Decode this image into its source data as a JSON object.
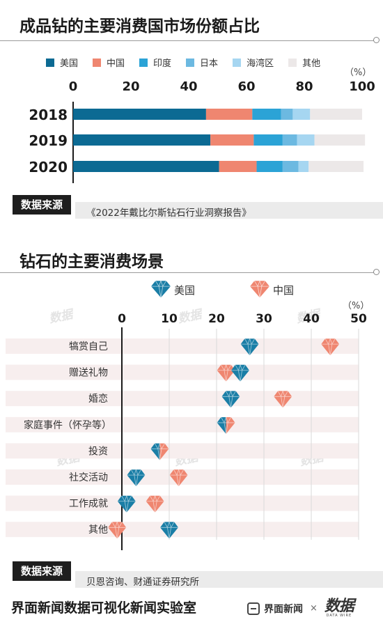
{
  "chart_top": {
    "title": "成品钻的主要消费国市场份额占比",
    "unit": "（%）",
    "source_label": "数据来源",
    "source_text": "《2022年戴比尔斯钻石行业洞察报告》",
    "legend": [
      {
        "name": "美国",
        "color": "#0c6a93"
      },
      {
        "name": "中国",
        "color": "#ef8670"
      },
      {
        "name": "印度",
        "color": "#2ba3d6"
      },
      {
        "name": "日本",
        "color": "#6cb9e1"
      },
      {
        "name": "海湾区",
        "color": "#a6d6f1"
      },
      {
        "name": "其他",
        "color": "#ece8e8"
      }
    ]
  },
  "chart_bottom": {
    "title": "钻石的主要消费场景",
    "unit": "（%）",
    "source_label": "数据来源",
    "source_text": "贝恩咨询、财通证券研究所",
    "legend": [
      {
        "name": "美国",
        "color": "#1a7ea6"
      },
      {
        "name": "中国",
        "color": "#ef8670"
      }
    ]
  },
  "footer": {
    "title": "界面新闻数据可视化新闻实验室",
    "brand": "界面新闻",
    "times": "×",
    "logo": "数据",
    "logo_sub": "DATA WIRE"
  },
  "chart_data": [
    {
      "type": "bar",
      "orientation": "horizontal",
      "stacked": true,
      "title": "成品钻的主要消费国市场份额占比",
      "categories": [
        "2018",
        "2019",
        "2020"
      ],
      "xlim": [
        0,
        100
      ],
      "xticks": [
        0,
        20,
        40,
        60,
        80,
        100
      ],
      "unit": "%",
      "series": [
        {
          "name": "美国",
          "values": [
            46,
            47.5,
            50.5
          ]
        },
        {
          "name": "中国",
          "values": [
            16,
            15,
            13
          ]
        },
        {
          "name": "印度",
          "values": [
            10,
            10,
            9
          ]
        },
        {
          "name": "日本",
          "values": [
            4,
            5,
            5.5
          ]
        },
        {
          "name": "海湾区",
          "values": [
            6,
            6,
            3.5
          ]
        },
        {
          "name": "其他",
          "values": [
            18,
            17.5,
            19
          ]
        }
      ],
      "legend_position": "top"
    },
    {
      "type": "scatter",
      "subtype": "dot-plot",
      "title": "钻石的主要消费场景",
      "categories": [
        "犒赏自己",
        "赠送礼物",
        "婚恋",
        "家庭事件（怀孕等）",
        "投资",
        "社交活动",
        "工作成就",
        "其他"
      ],
      "xlim": [
        0,
        50
      ],
      "xticks": [
        0,
        10,
        20,
        30,
        40,
        50
      ],
      "unit": "%",
      "series": [
        {
          "name": "美国",
          "values": [
            27,
            25,
            23,
            22,
            8,
            3,
            1,
            10
          ]
        },
        {
          "name": "中国",
          "values": [
            44,
            22,
            34,
            22,
            8,
            12,
            7,
            -1
          ]
        }
      ],
      "legend_position": "top"
    }
  ]
}
